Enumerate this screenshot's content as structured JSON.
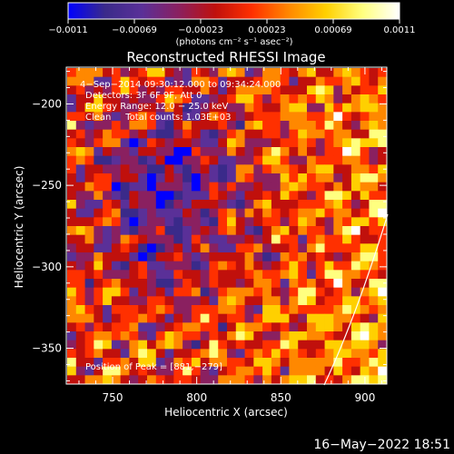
{
  "title": "Reconstructed RHESSI Image",
  "colorbar": {
    "tick_labels": [
      "−0.0011",
      "−0.00069",
      "−0.00023",
      "0.00023",
      "0.00069",
      "0.0011"
    ],
    "unit_label": "(photons cm⁻² s⁻¹ asec⁻²)"
  },
  "annotations": {
    "time_range": "4−Sep−2014 09:30:12.000 to 09:34:24.000",
    "detectors": "Detectors: 3F 6F 9F, Att 0",
    "energy_range": "Energy Range: 12.0 − 25.0 keV",
    "clean_counts": "Clean     Total counts: 1.03E+03",
    "peak_position": "Position of Peak = [881,−279]"
  },
  "axes": {
    "xlabel": "Heliocentric X (arcsec)",
    "ylabel": "Heliocentric Y (arcsec)",
    "x_ticks": [
      750,
      800,
      850,
      900
    ],
    "y_ticks": [
      -200,
      -250,
      -300,
      -350
    ],
    "x_tick_labels": [
      "750",
      "800",
      "850",
      "900"
    ],
    "y_tick_labels": [
      "−200",
      "−250",
      "−300",
      "−350"
    ],
    "xlim": [
      723,
      913
    ],
    "ylim": [
      -372,
      -178
    ]
  },
  "peak": {
    "x": 881,
    "y": -279
  },
  "footer": {
    "date": "16−May−2022 18:51"
  },
  "colors": {
    "background": "#000000",
    "text": "#ffffff",
    "colormap": [
      "#0000ff",
      "#3a2a8a",
      "#5a3098",
      "#8a2060",
      "#c0100c",
      "#ff3000",
      "#ff8800",
      "#ffd000",
      "#ffff80",
      "#ffffff"
    ]
  }
}
